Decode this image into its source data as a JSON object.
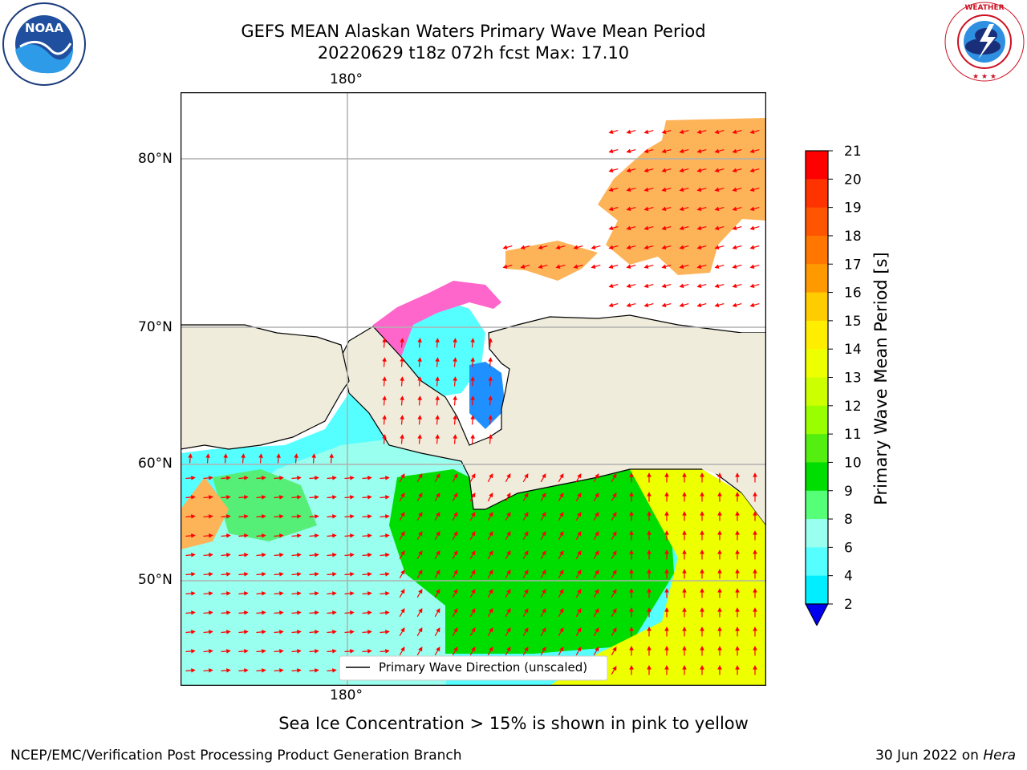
{
  "header": {
    "title_line1": "GEFS MEAN Alaskan Waters Primary Wave Mean Period",
    "title_line2": "20220629 t18z 072h fcst   Max: 17.10"
  },
  "logos": {
    "left": {
      "icon": "noaa-logo-icon",
      "text": "NOAA"
    },
    "right": {
      "icon": "nws-logo-icon",
      "text": "NATIONAL WEATHER SERVICE"
    }
  },
  "map": {
    "lon_label_top": "180°",
    "lon_label_bottom": "180°",
    "lat_labels": [
      "80°N",
      "70°N",
      "60°N",
      "50°N"
    ],
    "legend_label": "Primary Wave Direction (unscaled)",
    "colors": {
      "land": "#efecdc",
      "arrow": "#ff0000",
      "grid": "#b0b0b0"
    }
  },
  "colorbar": {
    "label": "Primary Wave Mean Period [s]",
    "ticks": [
      "21",
      "20",
      "19",
      "18",
      "17",
      "16",
      "15",
      "14",
      "13",
      "12",
      "11",
      "10",
      "9",
      "8",
      "6",
      "4",
      "2"
    ],
    "colors": [
      "#ff0000",
      "#ff3300",
      "#ff5500",
      "#ff7700",
      "#ff9900",
      "#ffcc00",
      "#ffee00",
      "#eeff00",
      "#ccff00",
      "#99ff00",
      "#55ee11",
      "#00dd00",
      "#55ff77",
      "#99ffee",
      "#55ffff",
      "#00eeff",
      "#0077ff"
    ],
    "under_color": "#0000ee"
  },
  "chart_data": {
    "type": "heatmap",
    "title": "GEFS MEAN Alaskan Waters Primary Wave Mean Period",
    "subtitle": "20220629 t18z 072h fcst   Max: 17.10",
    "colorbar_label": "Primary Wave Mean Period [s]",
    "max": 17.1,
    "scale_levels": [
      2,
      4,
      6,
      8,
      9,
      10,
      11,
      12,
      13,
      14,
      15,
      16,
      17,
      18,
      19,
      20,
      21
    ],
    "annotations": [
      "Sea Ice Concentration > 15% is shown in pink to yellow"
    ]
  },
  "footer": {
    "note": "Sea Ice Concentration > 15% is shown in pink to yellow",
    "left": "NCEP/EMC/Verification Post Processing Product Generation Branch",
    "right_prefix": "30 Jun 2022 on ",
    "right_host": "Hera"
  }
}
